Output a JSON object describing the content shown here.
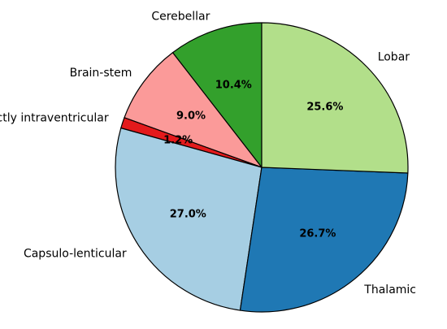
{
  "chart_data": {
    "type": "pie",
    "start_angle_deg": 90,
    "direction": "counterclockwise",
    "categories": [
      "Cerebellar",
      "Brain-stem",
      "Strictly intraventricular",
      "Capsulo-lenticular",
      "Thalamic",
      "Lobar"
    ],
    "values": [
      10.4,
      9.0,
      1.2,
      27.0,
      26.7,
      25.6
    ],
    "value_labels": [
      "10.4%",
      "9.0%",
      "1.2%",
      "27.0%",
      "26.7%",
      "25.6%"
    ],
    "colors": [
      "#33a02c",
      "#fb9a99",
      "#e31a1c",
      "#a6cee3",
      "#1f78b4",
      "#b2df8a"
    ],
    "title": "",
    "legend": "none"
  }
}
